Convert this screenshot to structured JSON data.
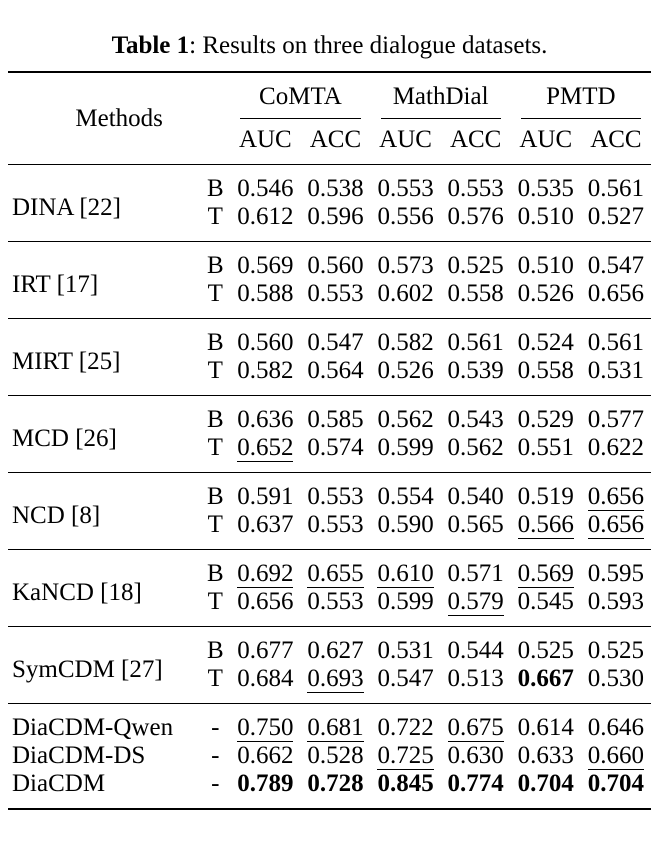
{
  "caption": {
    "label": "Table 1",
    "rest": ": Results on three dialogue datasets."
  },
  "table": {
    "methods_header": "Methods",
    "groups": [
      {
        "label": "CoMTA"
      },
      {
        "label": "MathDial"
      },
      {
        "label": "PMTD"
      }
    ],
    "subheaders": [
      "AUC",
      "ACC",
      "AUC",
      "ACC",
      "AUC",
      "ACC"
    ],
    "text_color": "#000000",
    "background_color": "#ffffff",
    "blocks": [
      {
        "rows": [
          {
            "method": "DINA [22]",
            "tags": [
              "B",
              "T"
            ],
            "values": [
              [
                "0.546",
                "0.538",
                "0.553",
                "0.553",
                "0.535",
                "0.561"
              ],
              [
                "0.612",
                "0.596",
                "0.556",
                "0.576",
                "0.510",
                "0.527"
              ]
            ],
            "styles": [
              [
                "",
                "",
                "",
                "",
                "",
                ""
              ],
              [
                "",
                "",
                "",
                "",
                "",
                ""
              ]
            ]
          }
        ]
      },
      {
        "rows": [
          {
            "method": "IRT [17]",
            "tags": [
              "B",
              "T"
            ],
            "values": [
              [
                "0.569",
                "0.560",
                "0.573",
                "0.525",
                "0.510",
                "0.547"
              ],
              [
                "0.588",
                "0.553",
                "0.602",
                "0.558",
                "0.526",
                "0.656"
              ]
            ],
            "styles": [
              [
                "",
                "",
                "",
                "",
                "",
                ""
              ],
              [
                "",
                "",
                "",
                "",
                "",
                ""
              ]
            ]
          }
        ]
      },
      {
        "rows": [
          {
            "method": "MIRT [25]",
            "tags": [
              "B",
              "T"
            ],
            "values": [
              [
                "0.560",
                "0.547",
                "0.582",
                "0.561",
                "0.524",
                "0.561"
              ],
              [
                "0.582",
                "0.564",
                "0.526",
                "0.539",
                "0.558",
                "0.531"
              ]
            ],
            "styles": [
              [
                "",
                "",
                "",
                "",
                "",
                ""
              ],
              [
                "",
                "",
                "",
                "",
                "",
                ""
              ]
            ]
          }
        ]
      },
      {
        "rows": [
          {
            "method": "MCD [26]",
            "tags": [
              "B",
              "T"
            ],
            "values": [
              [
                "0.636",
                "0.585",
                "0.562",
                "0.543",
                "0.529",
                "0.577"
              ],
              [
                "0.652",
                "0.574",
                "0.599",
                "0.562",
                "0.551",
                "0.622"
              ]
            ],
            "styles": [
              [
                "",
                "",
                "",
                "",
                "",
                ""
              ],
              [
                "u",
                "",
                "",
                "",
                "",
                ""
              ]
            ]
          }
        ]
      },
      {
        "rows": [
          {
            "method": "NCD [8]",
            "tags": [
              "B",
              "T"
            ],
            "values": [
              [
                "0.591",
                "0.553",
                "0.554",
                "0.540",
                "0.519",
                "0.656"
              ],
              [
                "0.637",
                "0.553",
                "0.590",
                "0.565",
                "0.566",
                "0.656"
              ]
            ],
            "styles": [
              [
                "",
                "",
                "",
                "",
                "",
                "u"
              ],
              [
                "",
                "",
                "",
                "",
                "u",
                "u"
              ]
            ]
          }
        ]
      },
      {
        "rows": [
          {
            "method": "KaNCD [18]",
            "tags": [
              "B",
              "T"
            ],
            "values": [
              [
                "0.692",
                "0.655",
                "0.610",
                "0.571",
                "0.569",
                "0.595"
              ],
              [
                "0.656",
                "0.553",
                "0.599",
                "0.579",
                "0.545",
                "0.593"
              ]
            ],
            "styles": [
              [
                "u",
                "u",
                "u",
                "",
                "u",
                ""
              ],
              [
                "",
                "",
                "",
                "u",
                "",
                ""
              ]
            ]
          }
        ]
      },
      {
        "rows": [
          {
            "method": "SymCDM [27]",
            "tags": [
              "B",
              "T"
            ],
            "values": [
              [
                "0.677",
                "0.627",
                "0.531",
                "0.544",
                "0.525",
                "0.525"
              ],
              [
                "0.684",
                "0.693",
                "0.547",
                "0.513",
                "0.667",
                "0.530"
              ]
            ],
            "styles": [
              [
                "",
                "",
                "",
                "",
                "",
                ""
              ],
              [
                "",
                "u",
                "",
                "",
                "b",
                ""
              ]
            ]
          }
        ]
      },
      {
        "rows": [
          {
            "method": "DiaCDM-Qwen",
            "tags": [
              "-"
            ],
            "values": [
              [
                "0.750",
                "0.681",
                "0.722",
                "0.675",
                "0.614",
                "0.646"
              ]
            ],
            "styles": [
              [
                "u",
                "u",
                "",
                "u",
                "",
                ""
              ]
            ]
          },
          {
            "method": "DiaCDM-DS",
            "tags": [
              "-"
            ],
            "values": [
              [
                "0.662",
                "0.528",
                "0.725",
                "0.630",
                "0.633",
                "0.660"
              ]
            ],
            "styles": [
              [
                "",
                "",
                "u",
                "",
                "",
                "u"
              ]
            ]
          },
          {
            "method": "DiaCDM",
            "tags": [
              "-"
            ],
            "values": [
              [
                "0.789",
                "0.728",
                "0.845",
                "0.774",
                "0.704",
                "0.704"
              ]
            ],
            "styles": [
              [
                "b",
                "b",
                "b",
                "b",
                "b",
                "b"
              ]
            ]
          }
        ]
      }
    ]
  }
}
